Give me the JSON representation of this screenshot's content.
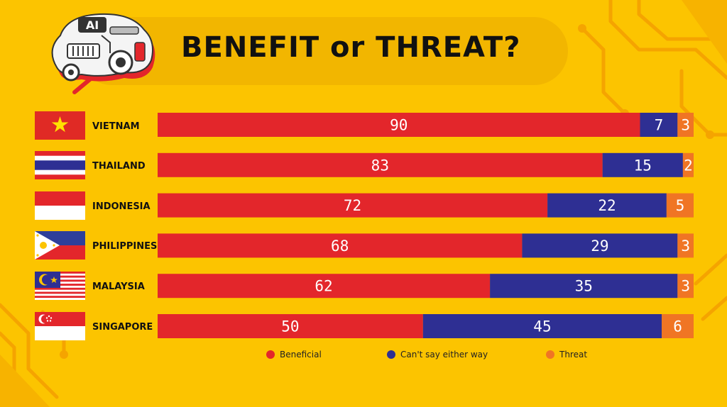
{
  "title": "BENEFIT or THREAT?",
  "logo_text": "AI",
  "colors": {
    "background": "#fcc400",
    "beneficial": "#e3262b",
    "cant_say": "#2e2f93",
    "threat": "#f07524"
  },
  "chart_data": {
    "type": "bar",
    "orientation": "horizontal",
    "stacked": true,
    "title": "BENEFIT or THREAT?",
    "categories": [
      "VIETNAM",
      "THAILAND",
      "INDONESIA",
      "PHILIPPINES",
      "MALAYSIA",
      "SINGAPORE"
    ],
    "series": [
      {
        "name": "Beneficial",
        "values": [
          90,
          83,
          72,
          68,
          62,
          50
        ],
        "color": "#e3262b"
      },
      {
        "name": "Can't say either way",
        "values": [
          7,
          15,
          22,
          29,
          35,
          45
        ],
        "color": "#2e2f93"
      },
      {
        "name": "Threat",
        "values": [
          3,
          2,
          5,
          3,
          3,
          6
        ],
        "color": "#f07524"
      }
    ],
    "legend_position": "bottom",
    "grid": false,
    "flags": [
      "vietnam-flag",
      "thailand-flag",
      "indonesia-flag",
      "philippines-flag",
      "malaysia-flag",
      "singapore-flag"
    ]
  }
}
